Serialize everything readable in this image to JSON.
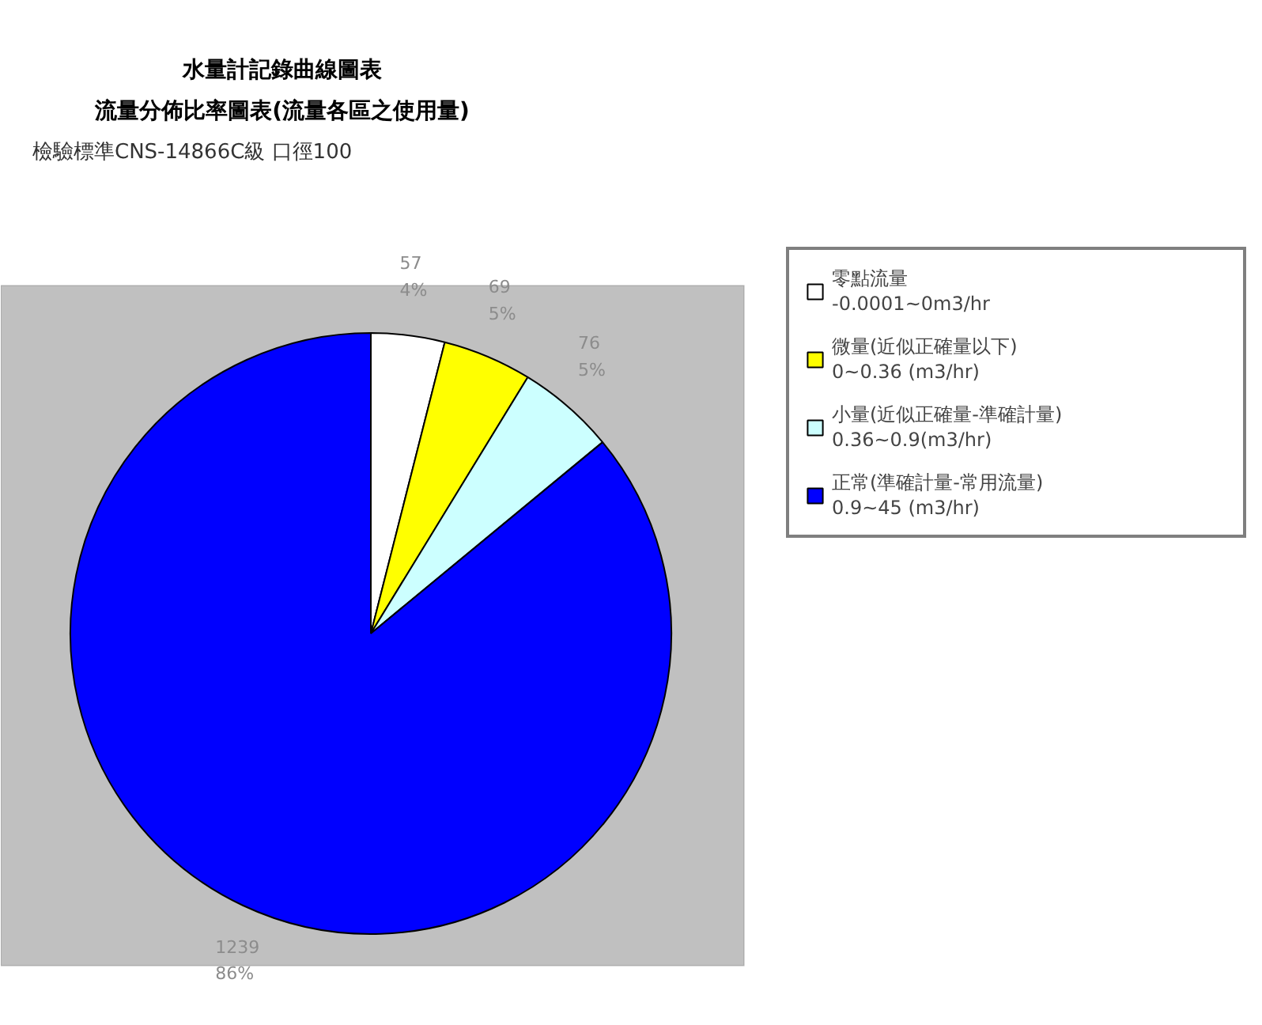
{
  "chart_data": {
    "type": "pie",
    "title": "水量計記錄曲線圖表",
    "subtitle": "流量分佈比率圖表(流量各區之使用量)",
    "annotations": [
      "檢驗標準CNS-14866C級  口徑100"
    ],
    "categories": [
      "零點流量\n-0.0001~0m3/hr",
      "微量(近似正確量以下)\n0~0.36 (m3/hr)",
      "小量(近似正確量-準確計量)\n0.36~0.9(m3/hr)",
      "正常(準確計量-常用流量)\n0.9~45 (m3/hr)"
    ],
    "values": [
      57,
      69,
      76,
      1239
    ],
    "colors": [
      "#ffffff",
      "#ffff00",
      "#ccffff",
      "#0000ff"
    ],
    "value_labels": [
      "57\n4%",
      "69\n5%",
      "76\n5%",
      "1239\n86%"
    ],
    "legend": "right"
  }
}
